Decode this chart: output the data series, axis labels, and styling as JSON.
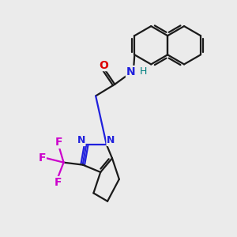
{
  "bg_color": "#ebebeb",
  "bond_color": "#1a1a1a",
  "N_color": "#2020dd",
  "O_color": "#dd0000",
  "F_color": "#cc00cc",
  "H_color": "#008080",
  "line_width": 1.6,
  "figsize": [
    3.0,
    3.0
  ],
  "dpi": 100,
  "xlim": [
    0,
    10
  ],
  "ylim": [
    0,
    10
  ]
}
